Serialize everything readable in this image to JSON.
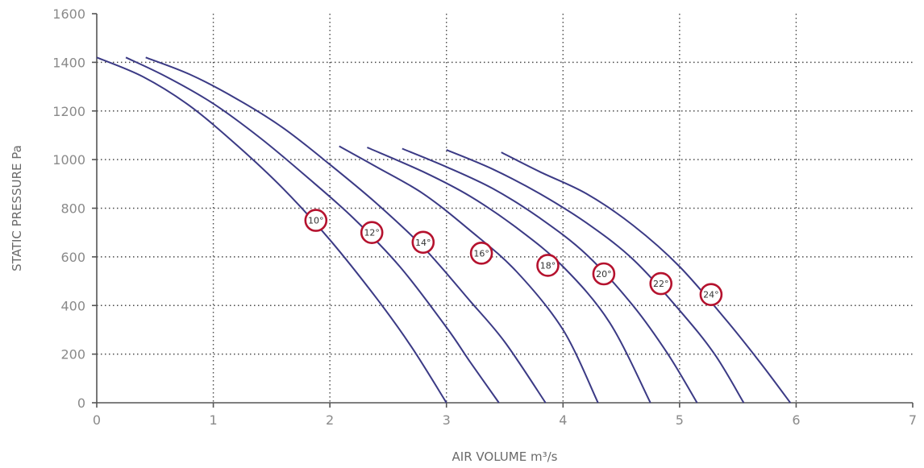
{
  "chart_data": {
    "type": "line",
    "xlabel": "AIR VOLUME m³/s",
    "ylabel": "STATIC PRESSURE Pa",
    "xlim": [
      0,
      7
    ],
    "ylim": [
      0,
      1600
    ],
    "x_ticks": [
      "0",
      "1",
      "2",
      "3",
      "4",
      "5",
      "6",
      "7"
    ],
    "y_ticks": [
      "0",
      "200",
      "400",
      "600",
      "800",
      "1000",
      "1200",
      "1400",
      "1600"
    ],
    "grid": true,
    "curve_color": "#3b3a85",
    "badge_color": "#b5122e",
    "series": [
      {
        "name": "10°",
        "label_point": [
          1.88,
          750
        ],
        "points": [
          [
            0,
            1420
          ],
          [
            0.4,
            1340
          ],
          [
            0.8,
            1220
          ],
          [
            1.2,
            1060
          ],
          [
            1.6,
            880
          ],
          [
            2.0,
            670
          ],
          [
            2.4,
            430
          ],
          [
            2.7,
            230
          ],
          [
            3.0,
            0
          ]
        ]
      },
      {
        "name": "12°",
        "label_point": [
          2.36,
          700
        ],
        "points": [
          [
            0.25,
            1420
          ],
          [
            0.6,
            1340
          ],
          [
            1.0,
            1230
          ],
          [
            1.4,
            1090
          ],
          [
            1.8,
            930
          ],
          [
            2.2,
            760
          ],
          [
            2.6,
            560
          ],
          [
            3.0,
            310
          ],
          [
            3.2,
            170
          ],
          [
            3.45,
            0
          ]
        ]
      },
      {
        "name": "14°",
        "label_point": [
          2.8,
          660
        ],
        "points": [
          [
            0.42,
            1420
          ],
          [
            0.8,
            1350
          ],
          [
            1.2,
            1250
          ],
          [
            1.6,
            1130
          ],
          [
            2.0,
            980
          ],
          [
            2.4,
            820
          ],
          [
            2.8,
            640
          ],
          [
            3.2,
            420
          ],
          [
            3.5,
            250
          ],
          [
            3.85,
            0
          ]
        ]
      },
      {
        "name": "16°",
        "label_point": [
          3.3,
          615
        ],
        "points": [
          [
            2.08,
            1055
          ],
          [
            2.4,
            970
          ],
          [
            2.8,
            860
          ],
          [
            3.2,
            710
          ],
          [
            3.6,
            540
          ],
          [
            4.0,
            300
          ],
          [
            4.3,
            0
          ]
        ]
      },
      {
        "name": "18°",
        "label_point": [
          3.87,
          565
        ],
        "points": [
          [
            2.32,
            1050
          ],
          [
            2.8,
            950
          ],
          [
            3.2,
            850
          ],
          [
            3.6,
            720
          ],
          [
            4.0,
            560
          ],
          [
            4.4,
            330
          ],
          [
            4.75,
            0
          ]
        ]
      },
      {
        "name": "20°",
        "label_point": [
          4.35,
          530
        ],
        "points": [
          [
            2.62,
            1045
          ],
          [
            3.0,
            970
          ],
          [
            3.4,
            880
          ],
          [
            3.8,
            760
          ],
          [
            4.2,
            610
          ],
          [
            4.6,
            400
          ],
          [
            4.9,
            200
          ],
          [
            5.15,
            0
          ]
        ]
      },
      {
        "name": "22°",
        "label_point": [
          4.84,
          490
        ],
        "points": [
          [
            3.0,
            1040
          ],
          [
            3.4,
            960
          ],
          [
            3.8,
            860
          ],
          [
            4.2,
            740
          ],
          [
            4.6,
            590
          ],
          [
            5.0,
            380
          ],
          [
            5.3,
            200
          ],
          [
            5.55,
            0
          ]
        ]
      },
      {
        "name": "24°",
        "label_point": [
          5.27,
          445
        ],
        "points": [
          [
            3.47,
            1030
          ],
          [
            3.8,
            950
          ],
          [
            4.2,
            860
          ],
          [
            4.6,
            730
          ],
          [
            5.0,
            560
          ],
          [
            5.4,
            340
          ],
          [
            5.7,
            160
          ],
          [
            5.95,
            0
          ]
        ]
      }
    ]
  }
}
